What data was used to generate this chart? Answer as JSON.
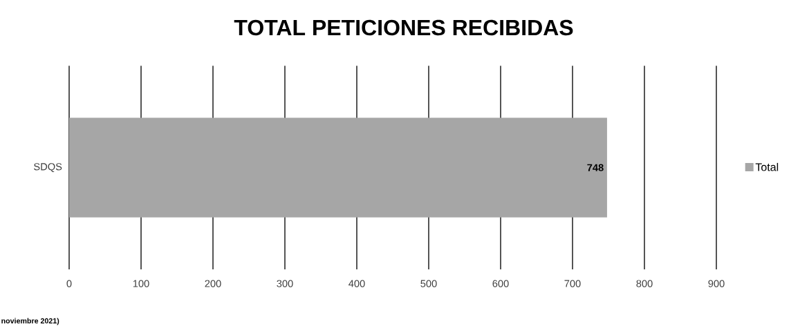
{
  "chart_data": {
    "type": "bar",
    "orientation": "horizontal",
    "title": "TOTAL PETICIONES RECIBIDAS",
    "categories": [
      "SDQS"
    ],
    "series": [
      {
        "name": "Total",
        "color": "#a6a6a6",
        "values": [
          748
        ]
      }
    ],
    "xlim": [
      0,
      900
    ],
    "xticks": [
      0,
      100,
      200,
      300,
      400,
      500,
      600,
      700,
      800,
      900
    ],
    "grid": "x",
    "legend": "right",
    "data_labels": true,
    "annotations": [
      "noviembre 2021)"
    ]
  }
}
